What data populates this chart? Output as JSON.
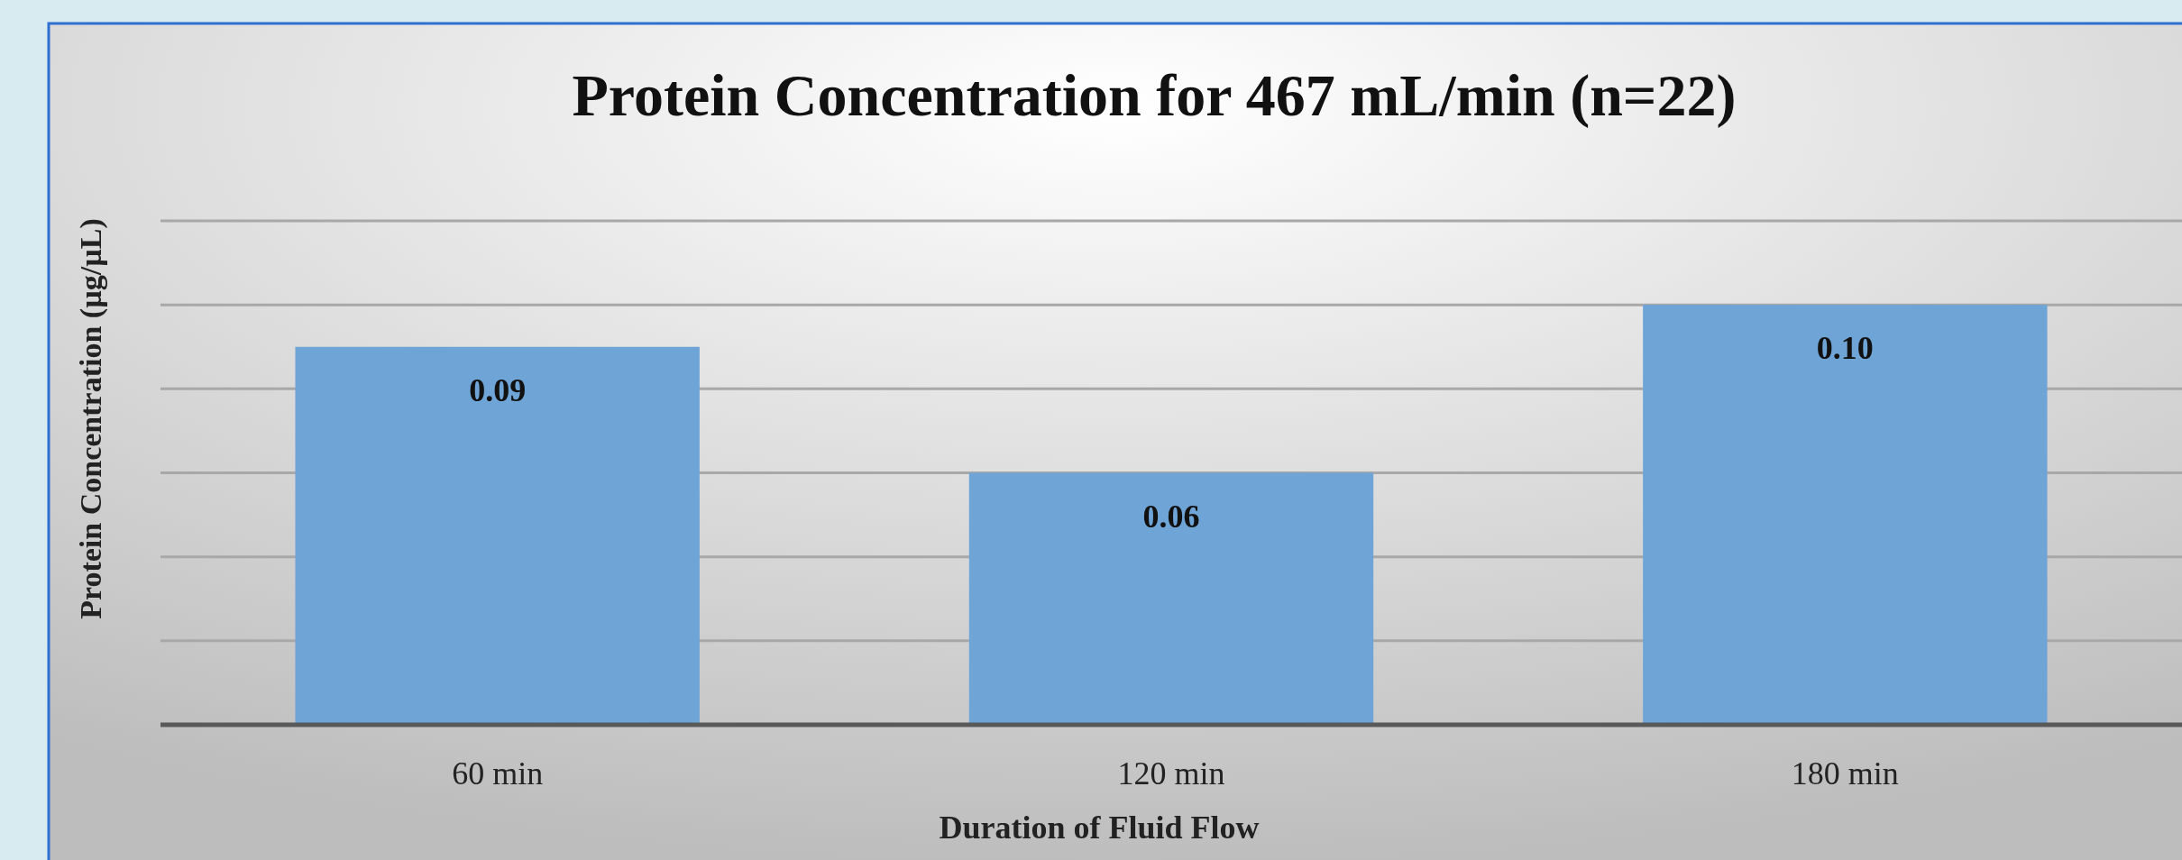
{
  "chart_data": {
    "type": "bar",
    "title": "Protein Concentration for 467 mL/min (n=22)",
    "xlabel": "Duration of Fluid Flow",
    "ylabel": "Protein Concentration (µg/µL)",
    "categories": [
      "60 min",
      "120 min",
      "180 min"
    ],
    "values": [
      0.09,
      0.06,
      0.1
    ],
    "color": "#6fa4d7",
    "ylim": [
      0,
      0.12
    ],
    "yticks": [
      {
        "value": 0,
        "label": null
      },
      {
        "value": 0.02,
        "label": null
      },
      {
        "value": 0.04,
        "label": null
      },
      {
        "value": 0.06,
        "label": null
      },
      {
        "value": 0.08,
        "label": null
      },
      {
        "value": 0.1,
        "label": null
      },
      {
        "value": 0.12,
        "label": null
      }
    ],
    "tick_labels": "x",
    "grid": "y",
    "value_labels": [
      "0.09",
      "0.06",
      "0.10"
    ]
  }
}
